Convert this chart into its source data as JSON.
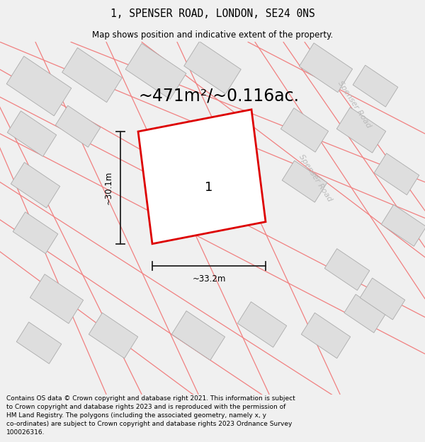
{
  "title": "1, SPENSER ROAD, LONDON, SE24 0NS",
  "subtitle": "Map shows position and indicative extent of the property.",
  "area_label": "~471m²/~0.116ac.",
  "property_number": "1",
  "dim_width": "~33.2m",
  "dim_height": "~30.1m",
  "road_label_1": "Spenser Road",
  "road_label_2": "Spenser Road",
  "footer": "Contains OS data © Crown copyright and database right 2021. This information is subject to Crown copyright and database rights 2023 and is reproduced with the permission of HM Land Registry. The polygons (including the associated geometry, namely x, y co-ordinates) are subject to Crown copyright and database rights 2023 Ordnance Survey 100026316.",
  "bg_color": "#f0f0f0",
  "map_bg": "#f8f8f8",
  "building_color": "#dedede",
  "building_edge": "#aaaaaa",
  "road_line_color": "#f08080",
  "plot_outline_color": "#dd0000",
  "dim_line_color": "#222222",
  "title_fontsize": 10.5,
  "subtitle_fontsize": 8.5,
  "area_fontsize": 17,
  "footer_fontsize": 6.5,
  "property_label_fontsize": 13,
  "road_label_fontsize": 8
}
